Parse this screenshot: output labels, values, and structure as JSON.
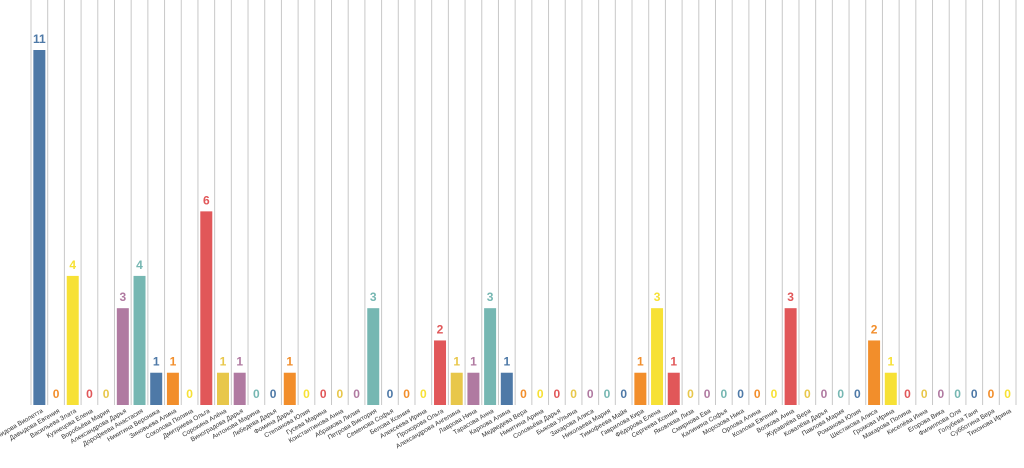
{
  "chart_data": {
    "type": "bar",
    "categories": [
      "Демидова Виолетта",
      "Давыдова Евгения",
      "Васильева Злата",
      "Кузнецова Елена",
      "Воробьёва Мария",
      "Александрова Дарья",
      "Дорофеева Анастасия",
      "Никитина Вероника",
      "Зиновьева Алина",
      "Соколова Полина",
      "Дмитриева Ольга",
      "Сорокина Алёна",
      "Виноградова Дарья",
      "Антонова Марина",
      "Лебедева Дарья",
      "Фомина Дарья",
      "Степанова Юлия",
      "Гусева Марина",
      "Константинова Анна",
      "Абрамова Лилия",
      "Петрова Виктория",
      "Семенова Софья",
      "Белова Ксения",
      "Алексеева Ирина",
      "Прохорова Ольга",
      "Александрова Ангелина",
      "Лаврова Нина",
      "Тарасова Анна",
      "Карпова Алина",
      "Медведева Вера",
      "Никитина Арина",
      "Соловьёва Дарья",
      "Быкова Ульяна",
      "Захарова Алиса",
      "Николаева Мария",
      "Тимофеева Майя",
      "Гаврилова Кира",
      "Фёдорова Елена",
      "Сергеева Ксения",
      "Яковлева Лиза",
      "Смирнова Ева",
      "Калинина Софья",
      "Морозова Ника",
      "Орлова Алина",
      "Козлова Евгения",
      "Волкова Анна",
      "Журавлёва Вера",
      "Ковалёва Дарья",
      "Павлова Мария",
      "Романова Юлия",
      "Шестакова Алиса",
      "Громова Ирина",
      "Макарова Полина",
      "Киселёва Инна",
      "Егорова Вика",
      "Филиппова Оля",
      "Голубева Таня",
      "Субботина Вера",
      "Тихонова Ирина"
    ],
    "values": [
      11,
      0,
      4,
      0,
      0,
      3,
      4,
      1,
      1,
      0,
      6,
      1,
      1,
      0,
      0,
      1,
      0,
      0,
      0,
      0,
      3,
      0,
      0,
      0,
      2,
      1,
      1,
      3,
      1,
      0,
      0,
      0,
      0,
      0,
      0,
      0,
      1,
      3,
      1,
      0,
      0,
      0,
      0,
      0,
      0,
      3,
      0,
      0,
      0,
      0,
      2,
      1,
      0,
      0,
      0,
      0,
      0,
      0,
      0
    ],
    "colors": [
      "#4e79a7",
      "#f28e2b",
      "#f7e135",
      "#e15759",
      "#e8c74a",
      "#b07aa1",
      "#76b7b2"
    ],
    "ylim": [
      0,
      11
    ]
  }
}
